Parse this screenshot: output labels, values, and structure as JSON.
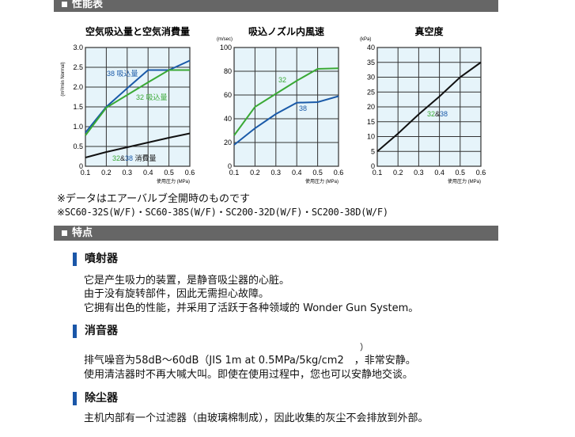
{
  "sections": {
    "performance": "性能表",
    "features": "特点"
  },
  "notes": [
    "※データはエアーバルブ全開時のものです",
    "※SC60-32S(W/F)・SC60-38S(W/F)・SC200-32D(W/F)・SC200-38D(W/F)"
  ],
  "features": [
    {
      "title": "噴射器",
      "lines": [
        "它是产生吸力的装置，是静音吸尘器的心脏。",
        "由于没有旋转部件，因此无需担心故障。",
        "它拥有出色的性能，并采用了活跃于各种领域的 Wonder Gun System。"
      ]
    },
    {
      "title": "消音器",
      "lines": [
        "排气噪音为58dB～60dB（JIS 1m at 0.5MPa/5kg/cm2　，非常安静。",
        "使用清洁器时不再大喊大叫。即使在使用过程中，您也可以安静地交谈。"
      ],
      "sup": "）"
    },
    {
      "title": "除尘器",
      "lines": [
        "主机内部有一个过滤器（由玻璃棉制成），因此收集的灰尘不会排放到外部。"
      ]
    }
  ],
  "colors": {
    "c32": "#3aa935",
    "c38": "#1a5aa8",
    "black": "#111111",
    "plot_bg": "#e6f4fa"
  },
  "chart_data": [
    {
      "type": "line",
      "title": "空気吸込量と空気消費量",
      "ylabel": "(m³/min Normal)",
      "xlabel": "使用圧力 (MPa)",
      "x": [
        0.1,
        0.2,
        0.3,
        0.4,
        0.5,
        0.6
      ],
      "xlim": [
        0.1,
        0.6
      ],
      "ylim": [
        0,
        3.0
      ],
      "xticks": [
        "0.1",
        "0.2",
        "0.3",
        "0.4",
        "0.5",
        "0.6"
      ],
      "yticks": [
        "0",
        "0.5",
        "1.0",
        "1.5",
        "2.0",
        "2.5",
        "3.0"
      ],
      "grid": true,
      "series": [
        {
          "name": "38 吸込量",
          "color": "c38",
          "values": [
            0.85,
            1.5,
            1.97,
            2.43,
            2.43,
            2.67
          ]
        },
        {
          "name": "32 吸込量",
          "color": "c32",
          "values": [
            0.78,
            1.48,
            1.8,
            2.12,
            2.43,
            2.43
          ]
        },
        {
          "name": "32&38 消費量",
          "color": "black",
          "values": [
            0.22,
            0.36,
            0.48,
            0.6,
            0.72,
            0.83
          ]
        }
      ]
    },
    {
      "type": "line",
      "title": "吸込ノズル内風速",
      "ylabel": "(m/sec)",
      "xlabel": "使用圧力 (MPa)",
      "x": [
        0.1,
        0.2,
        0.3,
        0.4,
        0.5,
        0.6
      ],
      "xlim": [
        0.1,
        0.6
      ],
      "ylim": [
        0,
        100
      ],
      "xticks": [
        "0.1",
        "0.2",
        "0.3",
        "0.4",
        "0.5",
        "0.6"
      ],
      "yticks": [
        "0",
        "20",
        "40",
        "60",
        "80",
        "100"
      ],
      "grid": true,
      "series": [
        {
          "name": "32",
          "color": "c32",
          "values": [
            26,
            50,
            61,
            72,
            82,
            82.5
          ]
        },
        {
          "name": "38",
          "color": "c38",
          "values": [
            18,
            32,
            44,
            53.5,
            54,
            59
          ]
        }
      ]
    },
    {
      "type": "line",
      "title": "真空度",
      "ylabel": "(kPa)",
      "xlabel": "使用圧力 (MPa)",
      "x": [
        0.1,
        0.2,
        0.3,
        0.4,
        0.5,
        0.6
      ],
      "xlim": [
        0.1,
        0.6
      ],
      "ylim": [
        0,
        40
      ],
      "xticks": [
        "0.1",
        "0.2",
        "0.3",
        "0.4",
        "0.5",
        "0.6"
      ],
      "yticks": [
        "0",
        "5",
        "10",
        "15",
        "20",
        "25",
        "30",
        "35",
        "40"
      ],
      "grid": true,
      "series": [
        {
          "name": "32&38",
          "color": "black",
          "values": [
            5,
            11,
            17.5,
            23.5,
            30,
            35
          ]
        }
      ]
    }
  ]
}
